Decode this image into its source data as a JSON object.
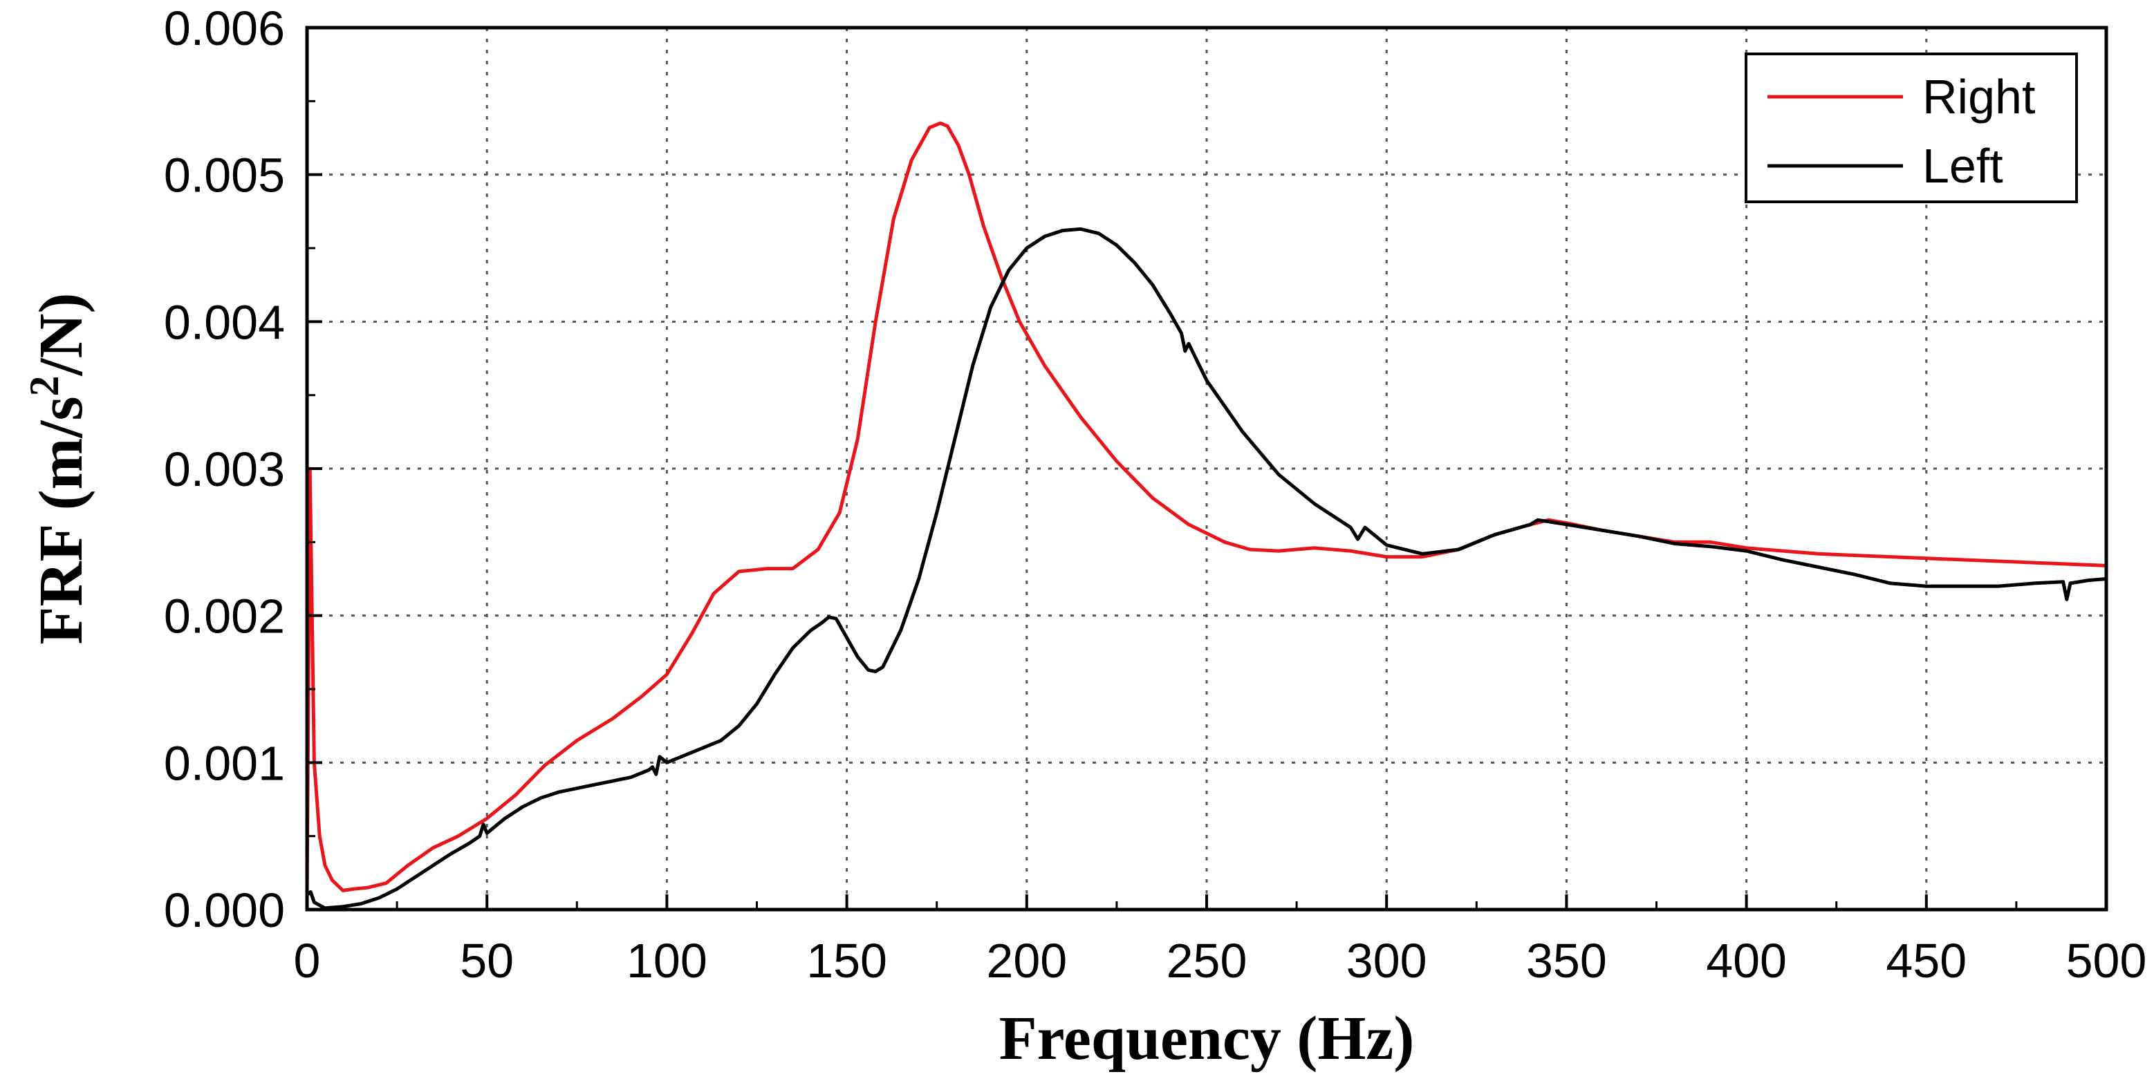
{
  "chart_data": {
    "type": "line",
    "title": "",
    "xlabel": "Frequency (Hz)",
    "ylabel": {
      "prefix": "FRF (m/s",
      "sup": "2",
      "suffix": "/N)"
    },
    "xlim": [
      0,
      500
    ],
    "ylim": [
      0,
      0.006
    ],
    "xticks": [
      0,
      50,
      100,
      150,
      200,
      250,
      300,
      350,
      400,
      450,
      500
    ],
    "xtick_labels": [
      "0",
      "50",
      "100",
      "150",
      "200",
      "250",
      "300",
      "350",
      "400",
      "450",
      "500"
    ],
    "yticks": [
      0,
      0.001,
      0.002,
      0.003,
      0.004,
      0.005,
      0.006
    ],
    "ytick_labels": [
      "0.000",
      "0.001",
      "0.002",
      "0.003",
      "0.004",
      "0.005",
      "0.006"
    ],
    "grid": true,
    "legend_position": "top-right",
    "series": [
      {
        "name": "Right",
        "color": "#e8161b",
        "x": [
          0,
          0.8,
          2,
          3.5,
          5,
          7,
          10,
          13,
          17,
          22,
          28,
          35,
          42,
          50,
          58,
          66,
          75,
          85,
          93,
          100,
          107,
          113,
          120,
          128,
          135,
          142,
          148,
          153,
          158,
          163,
          168,
          173,
          176,
          178,
          181,
          184,
          188,
          193,
          198,
          205,
          215,
          225,
          235,
          245,
          255,
          262,
          270,
          280,
          290,
          300,
          310,
          320,
          330,
          340,
          345,
          350,
          360,
          370,
          380,
          390,
          400,
          420,
          440,
          460,
          480,
          500
        ],
        "y": [
          0.0001,
          0.003,
          0.001,
          0.0005,
          0.0003,
          0.0002,
          0.00013,
          0.00014,
          0.00015,
          0.00018,
          0.0003,
          0.00042,
          0.0005,
          0.00062,
          0.00078,
          0.00098,
          0.00115,
          0.0013,
          0.00145,
          0.0016,
          0.00188,
          0.00215,
          0.0023,
          0.00232,
          0.00232,
          0.00245,
          0.0027,
          0.0032,
          0.004,
          0.0047,
          0.0051,
          0.00532,
          0.00535,
          0.00533,
          0.0052,
          0.005,
          0.00465,
          0.0043,
          0.004,
          0.0037,
          0.00335,
          0.00305,
          0.0028,
          0.00262,
          0.0025,
          0.00245,
          0.00244,
          0.00246,
          0.00244,
          0.0024,
          0.0024,
          0.00245,
          0.00255,
          0.00262,
          0.00265,
          0.00263,
          0.00258,
          0.00254,
          0.0025,
          0.0025,
          0.00246,
          0.00242,
          0.0024,
          0.00238,
          0.00236,
          0.00234
        ]
      },
      {
        "name": "Left",
        "color": "#000000",
        "x": [
          0,
          1,
          2,
          5,
          10,
          15,
          20,
          25,
          30,
          35,
          40,
          45,
          48,
          49,
          50,
          55,
          60,
          65,
          70,
          80,
          90,
          95,
          96,
          97,
          98,
          100,
          105,
          110,
          115,
          120,
          125,
          130,
          135,
          140,
          143,
          145,
          147,
          150,
          153,
          156,
          158,
          160,
          165,
          170,
          175,
          180,
          185,
          190,
          195,
          200,
          205,
          210,
          215,
          220,
          225,
          230,
          235,
          240,
          243,
          244,
          245,
          250,
          260,
          270,
          280,
          290,
          292,
          294,
          300,
          310,
          320,
          330,
          340,
          342,
          345,
          350,
          360,
          370,
          380,
          390,
          400,
          410,
          420,
          430,
          440,
          450,
          460,
          470,
          480,
          488,
          489,
          490,
          495,
          500
        ],
        "y": [
          0.0001,
          0.00012,
          5e-05,
          1e-05,
          2e-05,
          4e-05,
          8e-05,
          0.00014,
          0.00022,
          0.0003,
          0.00038,
          0.00045,
          0.0005,
          0.00058,
          0.00052,
          0.00062,
          0.0007,
          0.00076,
          0.0008,
          0.00085,
          0.0009,
          0.00095,
          0.00097,
          0.00092,
          0.00104,
          0.001,
          0.00105,
          0.0011,
          0.00115,
          0.00125,
          0.0014,
          0.0016,
          0.00178,
          0.0019,
          0.00195,
          0.00199,
          0.00198,
          0.00185,
          0.00172,
          0.00163,
          0.00162,
          0.00165,
          0.0019,
          0.00225,
          0.0027,
          0.0032,
          0.0037,
          0.0041,
          0.00435,
          0.0045,
          0.00458,
          0.00462,
          0.00463,
          0.0046,
          0.00452,
          0.0044,
          0.00425,
          0.00405,
          0.00392,
          0.0038,
          0.00385,
          0.0036,
          0.00325,
          0.00296,
          0.00276,
          0.0026,
          0.00252,
          0.0026,
          0.00248,
          0.00242,
          0.00245,
          0.00255,
          0.00262,
          0.00265,
          0.00264,
          0.00262,
          0.00258,
          0.00254,
          0.00249,
          0.00247,
          0.00244,
          0.00238,
          0.00233,
          0.00228,
          0.00222,
          0.0022,
          0.0022,
          0.0022,
          0.00222,
          0.00223,
          0.00211,
          0.00222,
          0.00224,
          0.00225
        ]
      }
    ]
  }
}
